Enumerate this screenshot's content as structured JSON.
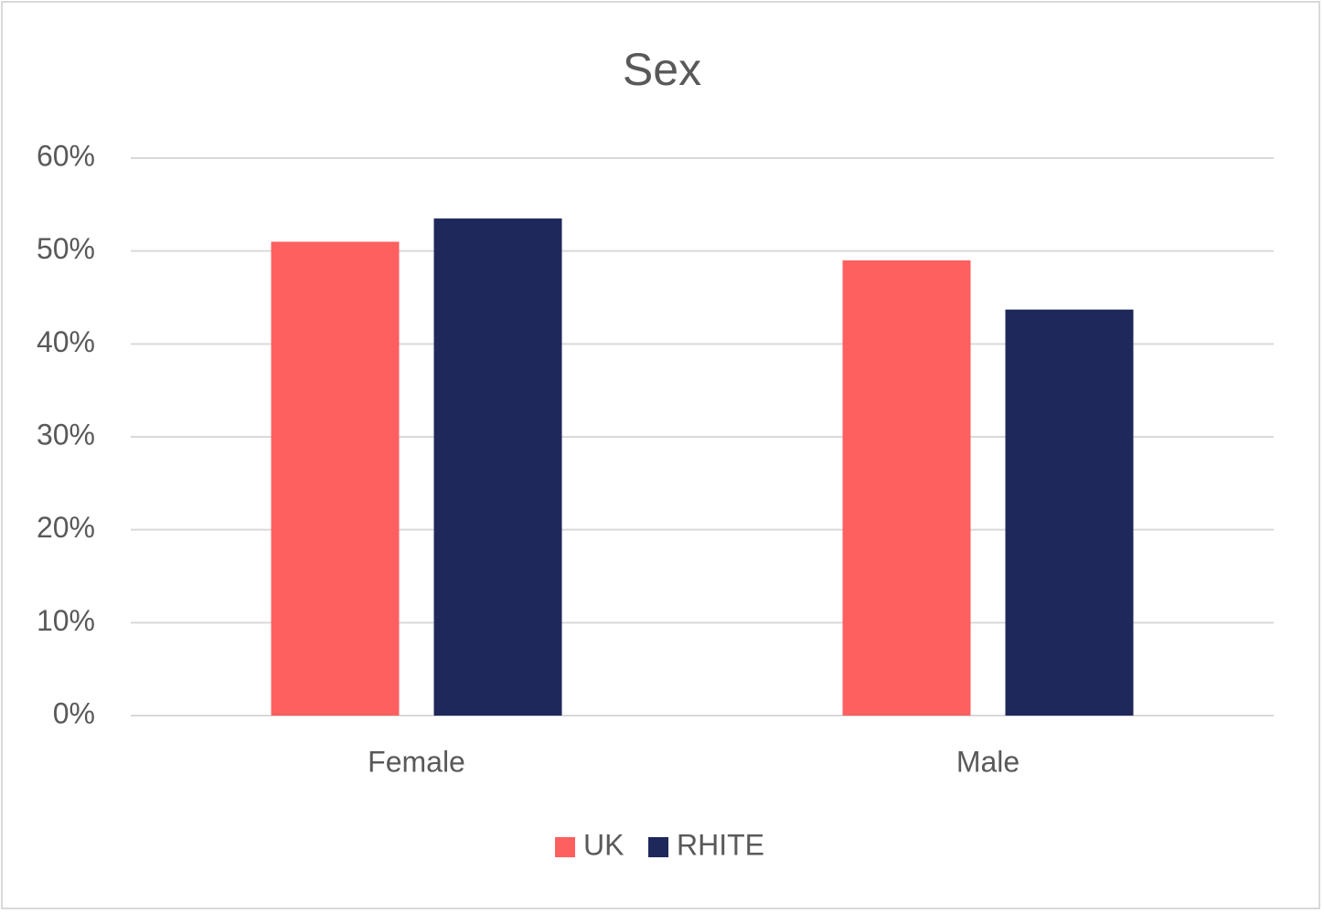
{
  "chart_data": {
    "type": "bar",
    "title": "Sex",
    "categories": [
      "Female",
      "Male"
    ],
    "series": [
      {
        "name": "UK",
        "color": "#fe5f5f",
        "values": [
          51,
          49
        ]
      },
      {
        "name": "RHITE",
        "color": "#1e285a",
        "values": [
          53.5,
          43.7
        ]
      }
    ],
    "ylim": [
      0,
      60
    ],
    "yticks": [
      {
        "value": 0,
        "label": "0%"
      },
      {
        "value": 10,
        "label": "10%"
      },
      {
        "value": 20,
        "label": "20%"
      },
      {
        "value": 30,
        "label": "30%"
      },
      {
        "value": 40,
        "label": "40%"
      },
      {
        "value": 50,
        "label": "50%"
      },
      {
        "value": 60,
        "label": "60%"
      }
    ],
    "grid": true,
    "legend": "bottom"
  }
}
